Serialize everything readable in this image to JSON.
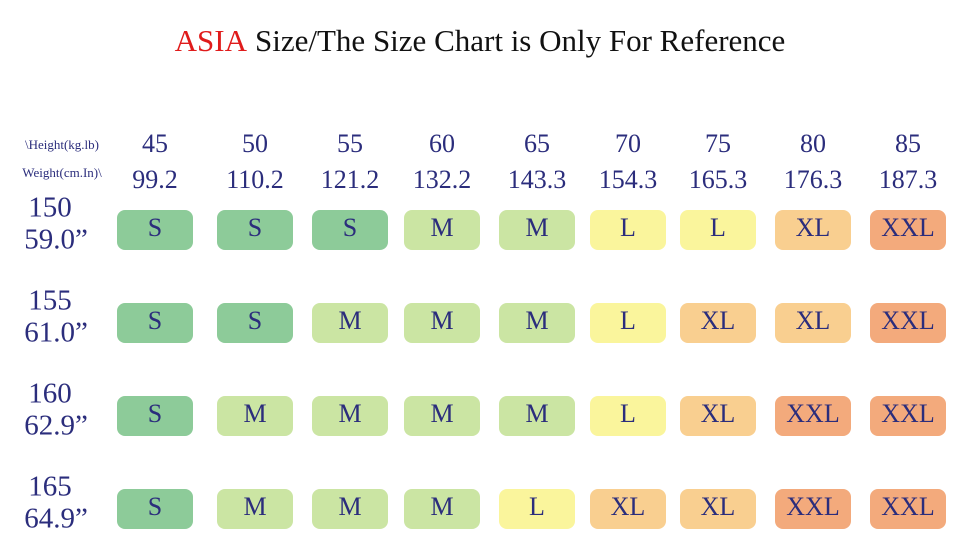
{
  "title": {
    "highlight": "ASIA",
    "text": "Size/The Size Chart is Only For Reference"
  },
  "header": {
    "height_label": "\\Height(kg.lb)",
    "weight_label": "Weight(cm.In)\\"
  },
  "columns": [
    {
      "kg": "45",
      "lb": "99.2"
    },
    {
      "kg": "50",
      "lb": "110.2"
    },
    {
      "kg": "55",
      "lb": "121.2"
    },
    {
      "kg": "60",
      "lb": "132.2"
    },
    {
      "kg": "65",
      "lb": "143.3"
    },
    {
      "kg": "70",
      "lb": "154.3"
    },
    {
      "kg": "75",
      "lb": "165.3"
    },
    {
      "kg": "80",
      "lb": "176.3"
    },
    {
      "kg": "85",
      "lb": "187.3"
    }
  ],
  "rows": [
    {
      "cm": "150",
      "in": "59.0”",
      "sizes": [
        "S",
        "S",
        "S",
        "M",
        "M",
        "L",
        "L",
        "XL",
        "XXL"
      ]
    },
    {
      "cm": "155",
      "in": "61.0”",
      "sizes": [
        "S",
        "S",
        "M",
        "M",
        "M",
        "L",
        "XL",
        "XL",
        "XXL"
      ]
    },
    {
      "cm": "160",
      "in": "62.9”",
      "sizes": [
        "S",
        "M",
        "M",
        "M",
        "M",
        "L",
        "XL",
        "XXL",
        "XXL"
      ]
    },
    {
      "cm": "165",
      "in": "64.9”",
      "sizes": [
        "S",
        "M",
        "M",
        "M",
        "L",
        "XL",
        "XL",
        "XXL",
        "XXL"
      ]
    }
  ],
  "colors": {
    "S": "#8dcb99",
    "M": "#cbe5a3",
    "L": "#faf59c",
    "XL": "#f9cf90",
    "XXL": "#f3aa7c"
  }
}
